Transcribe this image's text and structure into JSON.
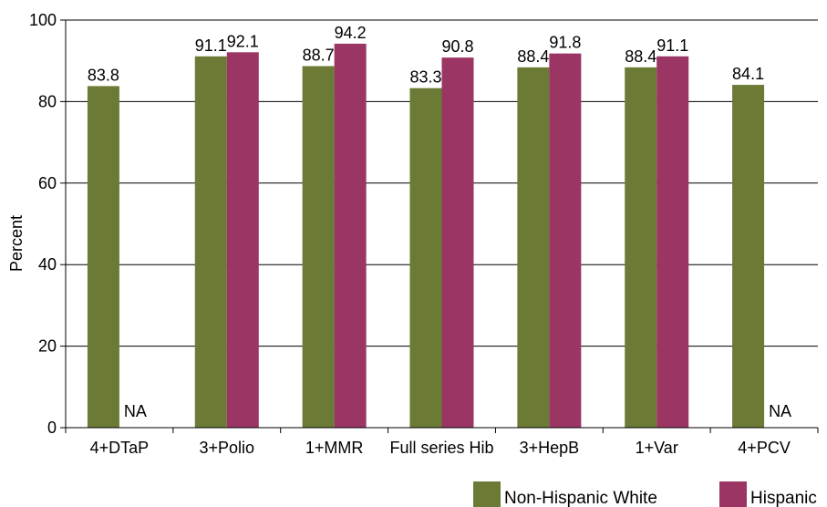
{
  "chart_data": {
    "type": "bar",
    "title": "",
    "xlabel": "",
    "ylabel": "Percent",
    "ylim": [
      0,
      100
    ],
    "yticks": [
      0,
      20,
      40,
      60,
      80,
      100
    ],
    "grid": true,
    "legend_position": "bottom-right",
    "categories": [
      "4+DTaP",
      "3+Polio",
      "1+MMR",
      "Full series Hib",
      "3+HepB",
      "1+Var",
      "4+PCV"
    ],
    "series": [
      {
        "name": "Non-Hispanic White",
        "color": "#6b7a35",
        "values": [
          83.8,
          91.1,
          88.7,
          83.3,
          88.4,
          88.4,
          84.1
        ],
        "labels": [
          "83.8",
          "91.1",
          "88.7",
          "83.3",
          "88.4",
          "88.4",
          "84.1"
        ]
      },
      {
        "name": "Hispanic",
        "color": "#9b3563",
        "values": [
          null,
          92.1,
          94.2,
          90.8,
          91.8,
          91.1,
          null
        ],
        "labels": [
          "NA",
          "92.1",
          "94.2",
          "90.8",
          "91.8",
          "91.1",
          "NA"
        ]
      }
    ]
  }
}
